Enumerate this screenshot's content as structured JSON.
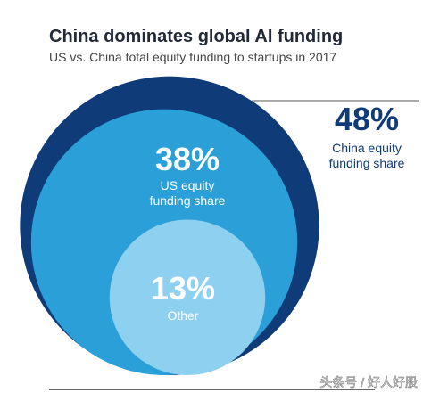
{
  "chart_data": {
    "type": "circles",
    "title": "China dominates global AI funding",
    "subtitle": "US vs. China total equity funding to startups in 2017",
    "series": [
      {
        "name": "China equity funding share",
        "color": "#0f3c78",
        "values": [
          48
        ],
        "value_labels": [
          "48%"
        ]
      },
      {
        "name": "US equity funding share",
        "color": "#2b9fd8",
        "values": [
          38
        ],
        "value_labels": [
          "38%"
        ]
      },
      {
        "name": "Other",
        "color": "#8dd0ef",
        "values": [
          13
        ],
        "value_labels": [
          "13%"
        ]
      }
    ],
    "watermark": "头条号 / 好人好股"
  }
}
